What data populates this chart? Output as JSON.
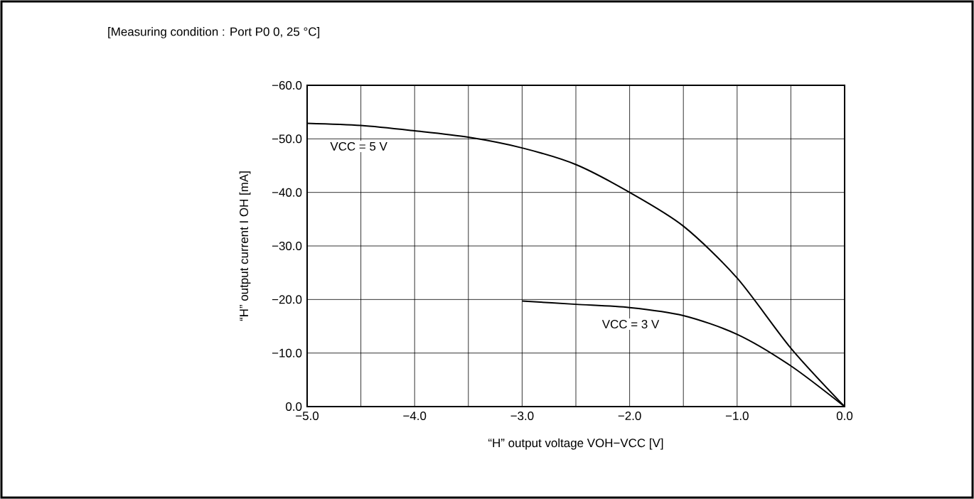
{
  "chart_data": {
    "type": "line",
    "title": "[Measuring condition : Port P0 0, 25 °C]",
    "xlabel": "“H” output voltage VOH−VCC [V]",
    "ylabel": "“H” output current I OH [mA]",
    "xlim": [
      -5,
      0
    ],
    "ylim": [
      0,
      -60
    ],
    "xticks": [
      {
        "value": -5,
        "label": "−5.0"
      },
      {
        "value": -4.5,
        "label": null
      },
      {
        "value": -4,
        "label": "−4.0"
      },
      {
        "value": -3.5,
        "label": null
      },
      {
        "value": -3,
        "label": "−3.0"
      },
      {
        "value": -2.5,
        "label": null
      },
      {
        "value": -2,
        "label": "−2.0"
      },
      {
        "value": -1.5,
        "label": null
      },
      {
        "value": -1,
        "label": "−1.0"
      },
      {
        "value": -0.5,
        "label": null
      },
      {
        "value": 0,
        "label": "0.0"
      }
    ],
    "yticks": [
      {
        "value": -60,
        "label": "−60.0"
      },
      {
        "value": -50,
        "label": "−50.0"
      },
      {
        "value": -40,
        "label": "−40.0"
      },
      {
        "value": -30,
        "label": "−30.0"
      },
      {
        "value": -20,
        "label": "−20.0"
      },
      {
        "value": -10,
        "label": "−10.0"
      },
      {
        "value": 0,
        "label": "0.0"
      }
    ],
    "grid": true,
    "marker": "none",
    "line_style": "solid",
    "series": [
      {
        "name": "VCC = 5 V",
        "color": "#000000",
        "x": [
          -5,
          -4.5,
          -4,
          -3.5,
          -3,
          -2.5,
          -2,
          -1.5,
          -1,
          -0.5,
          0
        ],
        "values": [
          -52.9,
          -52.5,
          -51.5,
          -50.3,
          -48.3,
          -45.2,
          -40,
          -33.7,
          -24,
          -10.9,
          0
        ]
      },
      {
        "name": "VCC = 3 V",
        "color": "#000000",
        "x": [
          -3,
          -2.5,
          -2,
          -1.5,
          -1,
          -0.5,
          0
        ],
        "values": [
          -19.7,
          -19.1,
          -18.5,
          -17,
          -13.5,
          -7.6,
          0
        ]
      }
    ]
  }
}
